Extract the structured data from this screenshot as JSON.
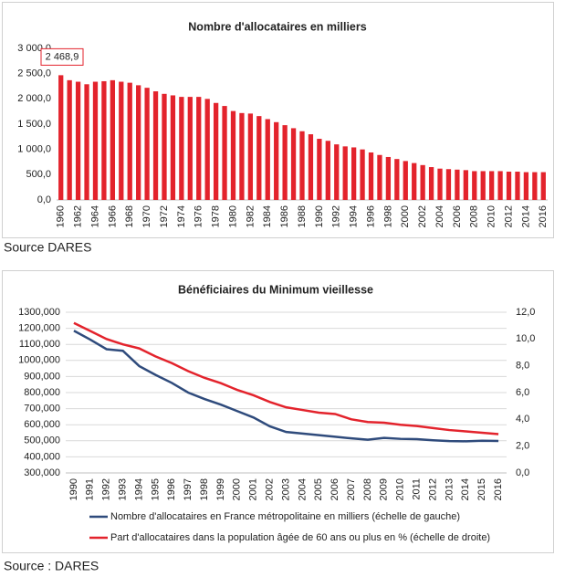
{
  "chart_data": [
    {
      "type": "bar",
      "title": "Nombre d'allocataires en milliers",
      "source": "Source DARES",
      "color": "#e3232c",
      "grid": false,
      "categories": [
        "1960",
        null,
        "1962",
        null,
        "1964",
        null,
        "1966",
        null,
        "1968",
        null,
        "1970",
        null,
        "1972",
        null,
        "1974",
        null,
        "1976",
        null,
        "1978",
        null,
        "1980",
        null,
        "1982",
        null,
        "1984",
        null,
        "1986",
        null,
        "1988",
        null,
        "1990",
        null,
        "1992",
        null,
        "1994",
        null,
        "1996",
        null,
        "1998",
        null,
        "2000",
        null,
        "2002",
        null,
        "2004",
        null,
        "2006",
        null,
        "2008",
        null,
        "2010",
        null,
        "2012",
        null,
        "2014",
        null,
        "2016"
      ],
      "values": [
        2468.9,
        2370,
        2340,
        2290,
        2340,
        2350,
        2370,
        2340,
        2320,
        2270,
        2220,
        2150,
        2100,
        2070,
        2040,
        2040,
        2040,
        2000,
        1920,
        1860,
        1760,
        1720,
        1710,
        1660,
        1600,
        1540,
        1480,
        1420,
        1360,
        1300,
        1210,
        1170,
        1100,
        1060,
        1040,
        1000,
        940,
        890,
        850,
        810,
        770,
        730,
        690,
        650,
        620,
        610,
        600,
        590,
        570,
        570,
        570,
        570,
        560,
        560,
        550,
        550,
        550
      ],
      "value_labels": [
        "2 468,9",
        null,
        null,
        null,
        null,
        null,
        null,
        null,
        null,
        null,
        null,
        null,
        null,
        null,
        null,
        null,
        null,
        null,
        null,
        null,
        null,
        null,
        null,
        null,
        null,
        null,
        null,
        null,
        null,
        null,
        null,
        null,
        null,
        null,
        null,
        null,
        null,
        null,
        null,
        null,
        null,
        null,
        null,
        null,
        null,
        null,
        null,
        null,
        null,
        null,
        null,
        null,
        null,
        null,
        null,
        null,
        null
      ],
      "ylim": [
        0,
        3000
      ],
      "yticks": [
        {
          "value": 0,
          "label": "0,0"
        },
        {
          "value": 500,
          "label": "500,0"
        },
        {
          "value": 1000,
          "label": "1 000,0"
        },
        {
          "value": 1500,
          "label": "1 500,0"
        },
        {
          "value": 2000,
          "label": "2 000,0"
        },
        {
          "value": 2500,
          "label": "2 500,0"
        },
        {
          "value": 3000,
          "label": "3 000,0"
        }
      ]
    },
    {
      "type": "line",
      "title": "Bénéficiaires du Minimum vieillesse",
      "source": "Source : DARES",
      "grid": true,
      "categories": [
        "1990",
        "1991",
        "1992",
        "1993",
        "1994",
        "1995",
        "1996",
        "1997",
        "1998",
        "1999",
        "2000",
        "2001",
        "2002",
        "2003",
        "2004",
        "2005",
        "2006",
        "2007",
        "2008",
        "2009",
        "2010",
        "2011",
        "2012",
        "2013",
        "2014",
        "2015",
        "2016"
      ],
      "series": [
        {
          "name": "Nombre d'allocataires en France métropolitaine en milliers (échelle de gauche)",
          "color": "#2f4b7c",
          "values": [
            1185000,
            1130000,
            1070000,
            1060000,
            965000,
            910000,
            860000,
            800000,
            760000,
            725000,
            685000,
            645000,
            590000,
            555000,
            545000,
            535000,
            525000,
            515000,
            507000,
            518000,
            512000,
            510000,
            503000,
            498000,
            497000,
            500000,
            499000
          ]
        },
        {
          "name": "Part d'allocataires dans la population âgée de 60 ans ou plus en % (échelle de droite)",
          "color": "#e3232c",
          "axis": "y2",
          "values": [
            11.2,
            10.6,
            10.0,
            9.6,
            9.3,
            8.7,
            8.2,
            7.6,
            7.1,
            6.7,
            6.2,
            5.8,
            5.3,
            4.9,
            4.7,
            4.5,
            4.4,
            4.0,
            3.8,
            3.75,
            3.6,
            3.5,
            3.35,
            3.2,
            3.1,
            3.0,
            2.9
          ]
        }
      ],
      "ylim": [
        300000,
        1300000
      ],
      "yticks": [
        {
          "value": 300000,
          "label": "300,000"
        },
        {
          "value": 400000,
          "label": "400,000"
        },
        {
          "value": 500000,
          "label": "500,000"
        },
        {
          "value": 600000,
          "label": "600,000"
        },
        {
          "value": 700000,
          "label": "700,000"
        },
        {
          "value": 800000,
          "label": "800,000"
        },
        {
          "value": 900000,
          "label": "900,000"
        },
        {
          "value": 1000000,
          "label": "1000,000"
        },
        {
          "value": 1100000,
          "label": "1100,000"
        },
        {
          "value": 1200000,
          "label": "1200,000"
        },
        {
          "value": 1300000,
          "label": "1300,000"
        }
      ],
      "y2lim": [
        0,
        12
      ],
      "y2ticks": [
        {
          "value": 0,
          "label": "0,0"
        },
        {
          "value": 2,
          "label": "2,0"
        },
        {
          "value": 4,
          "label": "4,0"
        },
        {
          "value": 6,
          "label": "6,0"
        },
        {
          "value": 8,
          "label": "8,0"
        },
        {
          "value": 10,
          "label": "10,0"
        },
        {
          "value": 12,
          "label": "12,0"
        }
      ]
    }
  ]
}
